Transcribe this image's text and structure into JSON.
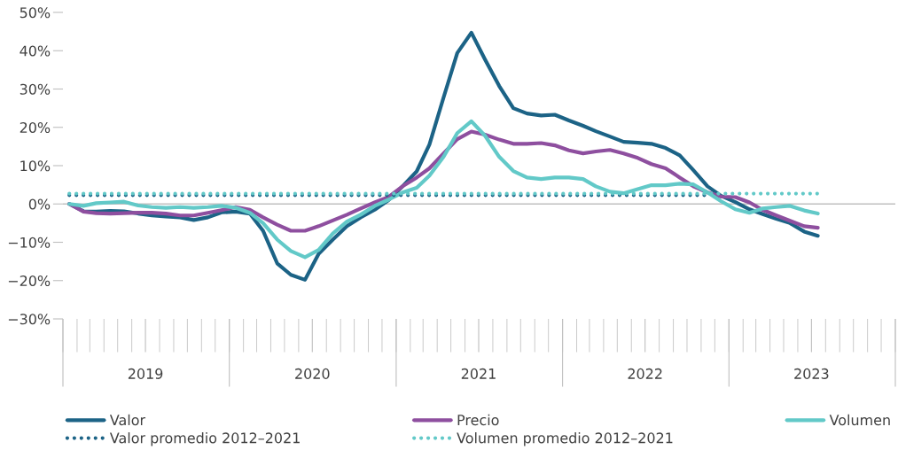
{
  "chart_data": {
    "type": "line",
    "x": [
      "2019-01-15",
      "2019-02-15",
      "2019-03-15",
      "2019-04-15",
      "2019-05-15",
      "2019-06-15",
      "2019-07-15",
      "2019-08-15",
      "2019-09-15",
      "2019-10-15",
      "2019-11-15",
      "2019-12-15",
      "2020-01-15",
      "2020-02-15",
      "2020-03-15",
      "2020-04-15",
      "2020-05-15",
      "2020-06-15",
      "2020-07-15",
      "2020-08-15",
      "2020-09-15",
      "2020-10-15",
      "2020-11-15",
      "2020-12-15",
      "2021-01-15",
      "2021-02-15",
      "2021-03-15",
      "2021-04-15",
      "2021-05-15",
      "2021-06-15",
      "2021-07-15",
      "2021-08-15",
      "2021-09-15",
      "2021-10-15",
      "2021-11-15",
      "2021-12-15",
      "2022-01-15",
      "2022-02-15",
      "2022-03-15",
      "2022-04-15",
      "2022-05-15",
      "2022-06-15",
      "2022-07-15",
      "2022-08-15",
      "2022-09-15",
      "2022-10-15",
      "2022-11-15",
      "2022-12-15",
      "2023-01-15",
      "2023-02-15",
      "2023-03-15",
      "2023-04-15",
      "2023-05-15",
      "2023-06-15",
      "2023-07-15"
    ],
    "series": [
      {
        "name": "Valor",
        "color": "#1c6386",
        "line_style": "solid",
        "values": [
          0,
          -1.9,
          -2,
          -1.8,
          -1.9,
          -2.5,
          -3,
          -3.3,
          -3.5,
          -4.2,
          -3.5,
          -2.2,
          -2,
          -2.5,
          -7,
          -15.5,
          -18.5,
          -19.8,
          -13,
          -9.3,
          -5.8,
          -3.5,
          -1.5,
          1,
          4.6,
          8.5,
          15.5,
          27.8,
          39.4,
          44.7,
          37.7,
          30.8,
          25,
          23.6,
          23.1,
          23.3,
          21.8,
          20.4,
          19,
          17.6,
          16.2,
          16,
          15.7,
          14.6,
          12.7,
          8.8,
          4.6,
          2.1,
          0.5,
          -1.4,
          -2.6,
          -3.9,
          -5,
          -7.2,
          -8.3
        ]
      },
      {
        "name": "Precio",
        "color": "#8e4f9f",
        "line_style": "solid",
        "values": [
          0,
          -2,
          -2.4,
          -2.5,
          -2.4,
          -2.3,
          -2.3,
          -2.5,
          -3,
          -3,
          -2.3,
          -1.6,
          -0.8,
          -1.5,
          -3.5,
          -5.4,
          -7,
          -7,
          -5.8,
          -4.3,
          -2.8,
          -1.2,
          0.4,
          1.8,
          4.6,
          6.9,
          9.3,
          13.2,
          16.9,
          18.9,
          18.1,
          16.8,
          15.7,
          15.7,
          15.9,
          15.3,
          14,
          13.2,
          13.7,
          14.1,
          13.2,
          12,
          10.4,
          9.3,
          6.9,
          4.6,
          3,
          1.9,
          1.8,
          0.4,
          -1.5,
          -3,
          -4.4,
          -5.8,
          -6.2
        ]
      },
      {
        "name": "Volumen",
        "color": "#62c9c8",
        "line_style": "solid",
        "values": [
          0,
          -0.5,
          0.2,
          0.4,
          0.6,
          -0.4,
          -0.8,
          -1,
          -0.8,
          -1,
          -0.8,
          -0.5,
          -1,
          -2.3,
          -5,
          -9.3,
          -12.3,
          -13.9,
          -12,
          -7.7,
          -4.6,
          -2.8,
          -0.5,
          1.1,
          3,
          4.2,
          7.4,
          12.3,
          18.5,
          21.6,
          17.8,
          12.3,
          8.6,
          6.9,
          6.5,
          6.9,
          6.9,
          6.5,
          4.6,
          3.2,
          2.8,
          3.9,
          4.9,
          4.9,
          5.3,
          5.1,
          3,
          0.7,
          -1.4,
          -2.3,
          -1.2,
          -0.8,
          -0.5,
          -1.7,
          -2.5
        ]
      },
      {
        "name": "Valor promedio 2012–2021",
        "color": "#1c6386",
        "line_style": "dotted",
        "values": [
          2.3,
          2.3,
          2.3,
          2.3,
          2.3,
          2.3,
          2.3,
          2.3,
          2.3,
          2.3,
          2.3,
          2.3,
          2.3,
          2.3,
          2.3,
          2.3,
          2.3,
          2.3,
          2.3,
          2.3,
          2.3,
          2.3,
          2.3,
          2.3,
          2.3,
          2.3,
          2.3,
          2.3,
          2.3,
          2.3,
          2.3,
          2.3,
          2.3,
          2.3,
          2.3,
          2.3,
          2.3,
          2.3,
          2.3,
          2.3,
          2.3,
          2.3,
          2.3,
          2.3,
          2.3,
          2.3,
          2.3,
          null,
          null,
          null,
          null,
          null,
          null,
          null,
          null
        ]
      },
      {
        "name": "Volumen promedio 2012–2021",
        "color": "#62c9c8",
        "line_style": "dotted",
        "values": [
          2.7,
          2.7,
          2.7,
          2.7,
          2.7,
          2.7,
          2.7,
          2.7,
          2.7,
          2.7,
          2.7,
          2.7,
          2.7,
          2.7,
          2.7,
          2.7,
          2.7,
          2.7,
          2.7,
          2.7,
          2.7,
          2.7,
          2.7,
          2.7,
          2.7,
          2.7,
          2.7,
          2.7,
          2.7,
          2.7,
          2.7,
          2.7,
          2.7,
          2.7,
          2.7,
          2.7,
          2.7,
          2.7,
          2.7,
          2.7,
          2.7,
          2.7,
          2.7,
          2.7,
          2.7,
          2.7,
          2.7,
          2.7,
          2.7,
          2.7,
          2.7,
          2.7,
          2.7,
          2.7,
          2.7
        ]
      }
    ],
    "xlim": [
      "2019-01-01",
      "2024-01-01"
    ],
    "xticks": [
      {
        "value": "2019-07-01",
        "label": "2019"
      },
      {
        "value": "2020-07-01",
        "label": "2020"
      },
      {
        "value": "2021-07-01",
        "label": "2021"
      },
      {
        "value": "2022-07-01",
        "label": "2022"
      },
      {
        "value": "2023-07-01",
        "label": "2023"
      }
    ],
    "ylim": [
      -30,
      50
    ],
    "yticks": [
      {
        "value": -30,
        "label": "−30%"
      },
      {
        "value": -20,
        "label": "−20%"
      },
      {
        "value": -10,
        "label": "−10%"
      },
      {
        "value": 0,
        "label": "0%"
      },
      {
        "value": 10,
        "label": "10%"
      },
      {
        "value": 20,
        "label": "20%"
      },
      {
        "value": 30,
        "label": "30%"
      },
      {
        "value": 40,
        "label": "40%"
      },
      {
        "value": 50,
        "label": "50%"
      }
    ],
    "ref_lines": [
      {
        "axis": "y",
        "value": 0,
        "color": "#bfbfbf",
        "line_style": "solid"
      }
    ],
    "grid": false,
    "legend": "bottom",
    "marker": "none"
  }
}
